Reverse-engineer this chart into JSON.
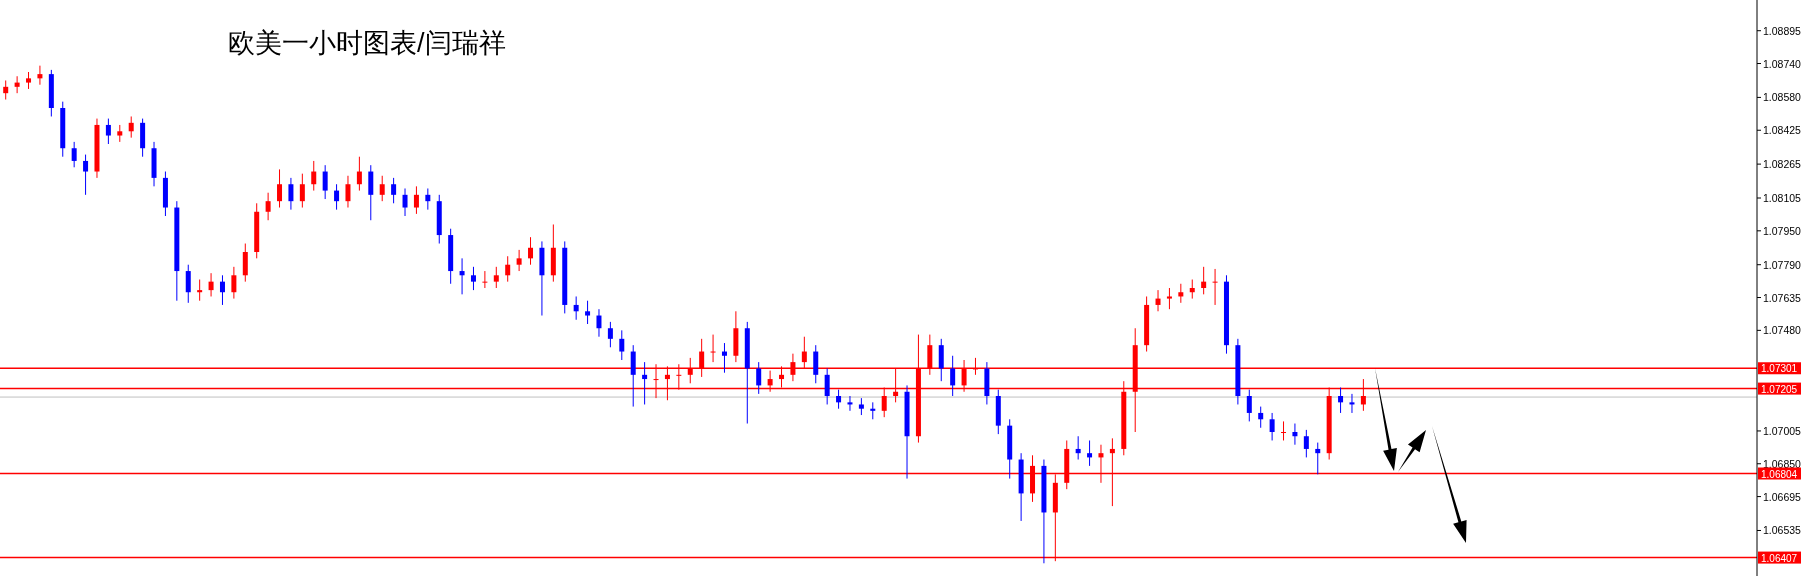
{
  "chart_data": {
    "type": "candlestick",
    "title": "欧美一小时图表/闫瑞祥",
    "categories": [
      null,
      null,
      null,
      null,
      null,
      null,
      null,
      null,
      null,
      null,
      null,
      null,
      null,
      null,
      null,
      null,
      null,
      null,
      null,
      null,
      null,
      null,
      null,
      null,
      null,
      null,
      null,
      null,
      null,
      null,
      null,
      null,
      null,
      null,
      null,
      null,
      null,
      null,
      null,
      null,
      null,
      null,
      null,
      null,
      null,
      null,
      null,
      null,
      null,
      null,
      null,
      null,
      null,
      null,
      null,
      null,
      null,
      null,
      null,
      null,
      null,
      null,
      null,
      null,
      null,
      null,
      null,
      null,
      null,
      null,
      null,
      null,
      null,
      null,
      null,
      null,
      null,
      null,
      null,
      null,
      null,
      null,
      null,
      null,
      null,
      null,
      null,
      null,
      null,
      null,
      null,
      null,
      null,
      null,
      null,
      null,
      null,
      null,
      null,
      null,
      null,
      null,
      null,
      null,
      null,
      null,
      null,
      null,
      null,
      null,
      null,
      null,
      null,
      null,
      null,
      null,
      null,
      null,
      null,
      null,
      null,
      null,
      null,
      null,
      null,
      null,
      null,
      null,
      null,
      null,
      null,
      null,
      null,
      null,
      null,
      null,
      null,
      null,
      null,
      null,
      null,
      null,
      null,
      null,
      null,
      null,
      null,
      null,
      null,
      null,
      null,
      null,
      null,
      null
    ],
    "ohlc": [
      [
        1.086,
        1.0866,
        1.0857,
        1.0863
      ],
      [
        1.0863,
        1.0868,
        1.086,
        1.0865
      ],
      [
        1.0865,
        1.087,
        1.0862,
        1.0867
      ],
      [
        1.0867,
        1.0873,
        1.0864,
        1.0869
      ],
      [
        1.0869,
        1.0871,
        1.0849,
        1.0853
      ],
      [
        1.0853,
        1.0856,
        1.083,
        1.0834
      ],
      [
        1.0834,
        1.0837,
        1.0825,
        1.0828
      ],
      [
        1.0828,
        1.0831,
        1.0812,
        1.0823
      ],
      [
        1.0823,
        1.0848,
        1.082,
        1.0845
      ],
      [
        1.0845,
        1.0848,
        1.0836,
        1.084
      ],
      [
        1.084,
        1.0845,
        1.0837,
        1.0842
      ],
      [
        1.0842,
        1.0849,
        1.0839,
        1.0846
      ],
      [
        1.0846,
        1.0848,
        1.083,
        1.0834
      ],
      [
        1.0834,
        1.0837,
        1.0816,
        1.082
      ],
      [
        1.082,
        1.0823,
        1.0802,
        1.0806
      ],
      [
        1.0806,
        1.0809,
        1.0762,
        1.0776
      ],
      [
        1.0776,
        1.0779,
        1.0761,
        1.0766
      ],
      [
        1.0766,
        1.0772,
        1.0762,
        1.0767
      ],
      [
        1.0767,
        1.0775,
        1.0764,
        1.0771
      ],
      [
        1.0771,
        1.0774,
        1.076,
        1.0766
      ],
      [
        1.0766,
        1.0778,
        1.0763,
        1.0774
      ],
      [
        1.0774,
        1.0789,
        1.0771,
        1.0785
      ],
      [
        1.0785,
        1.0808,
        1.0782,
        1.0804
      ],
      [
        1.0804,
        1.0813,
        1.08,
        1.0809
      ],
      [
        1.0809,
        1.0824,
        1.0806,
        1.0817
      ],
      [
        1.0817,
        1.082,
        1.0805,
        1.0809
      ],
      [
        1.0809,
        1.0822,
        1.0806,
        1.0817
      ],
      [
        1.0817,
        1.0828,
        1.0814,
        1.0823
      ],
      [
        1.0823,
        1.0826,
        1.081,
        1.0814
      ],
      [
        1.0814,
        1.0817,
        1.0805,
        1.0809
      ],
      [
        1.0809,
        1.0821,
        1.0806,
        1.0817
      ],
      [
        1.0817,
        1.083,
        1.0814,
        1.0823
      ],
      [
        1.0823,
        1.0826,
        1.08,
        1.0812
      ],
      [
        1.0812,
        1.0821,
        1.0809,
        1.0817
      ],
      [
        1.0817,
        1.082,
        1.0808,
        1.0812
      ],
      [
        1.0812,
        1.0815,
        1.0802,
        1.0806
      ],
      [
        1.0806,
        1.0816,
        1.0803,
        1.0812
      ],
      [
        1.0812,
        1.0815,
        1.0805,
        1.0809
      ],
      [
        1.0809,
        1.0812,
        1.0789,
        1.0793
      ],
      [
        1.0793,
        1.0796,
        1.077,
        1.0776
      ],
      [
        1.0776,
        1.0782,
        1.0765,
        1.0774
      ],
      [
        1.0774,
        1.0778,
        1.0767,
        1.0771
      ],
      [
        1.0771,
        1.0776,
        1.0768,
        1.0771
      ],
      [
        1.0771,
        1.0778,
        1.0768,
        1.0774
      ],
      [
        1.0774,
        1.0783,
        1.0771,
        1.0779
      ],
      [
        1.0779,
        1.0786,
        1.0776,
        1.0782
      ],
      [
        1.0782,
        1.0792,
        1.0779,
        1.0787
      ],
      [
        1.0787,
        1.079,
        1.0755,
        1.0774
      ],
      [
        1.0774,
        1.0798,
        1.0771,
        1.0787
      ],
      [
        1.0787,
        1.079,
        1.0756,
        1.076
      ],
      [
        1.076,
        1.0764,
        1.0753,
        1.0757
      ],
      [
        1.0757,
        1.0762,
        1.0751,
        1.0755
      ],
      [
        1.0755,
        1.0758,
        1.0745,
        1.0749
      ],
      [
        1.0749,
        1.0752,
        1.074,
        1.0744
      ],
      [
        1.0744,
        1.0748,
        1.0734,
        1.0738
      ],
      [
        1.0738,
        1.0741,
        1.0712,
        1.0727
      ],
      [
        1.0727,
        1.0733,
        1.0713,
        1.0725
      ],
      [
        1.0725,
        1.0732,
        1.0716,
        1.0725
      ],
      [
        1.0725,
        1.0731,
        1.0715,
        1.0727
      ],
      [
        1.0727,
        1.0732,
        1.072,
        1.0727
      ],
      [
        1.0727,
        1.0735,
        1.0723,
        1.073
      ],
      [
        1.073,
        1.0744,
        1.0726,
        1.0738
      ],
      [
        1.0738,
        1.0746,
        1.0733,
        1.0738
      ],
      [
        1.0738,
        1.0742,
        1.0728,
        1.0736
      ],
      [
        1.0736,
        1.0757,
        1.0733,
        1.0749
      ],
      [
        1.0749,
        1.0752,
        1.0704,
        1.073
      ],
      [
        1.073,
        1.0733,
        1.0718,
        1.0722
      ],
      [
        1.0722,
        1.0729,
        1.0719,
        1.0725
      ],
      [
        1.0725,
        1.0731,
        1.0721,
        1.0727
      ],
      [
        1.0727,
        1.0737,
        1.0724,
        1.0733
      ],
      [
        1.0733,
        1.0745,
        1.073,
        1.0738
      ],
      [
        1.0738,
        1.0741,
        1.0723,
        1.0727
      ],
      [
        1.0727,
        1.073,
        1.0713,
        1.0717
      ],
      [
        1.0717,
        1.072,
        1.0711,
        1.0714
      ],
      [
        1.0714,
        1.0717,
        1.071,
        1.0713
      ],
      [
        1.0713,
        1.0716,
        1.0708,
        1.0711
      ],
      [
        1.0711,
        1.0714,
        1.0706,
        1.071
      ],
      [
        1.071,
        1.0721,
        1.0707,
        1.0717
      ],
      [
        1.0717,
        1.073,
        1.0714,
        1.0719
      ],
      [
        1.0719,
        1.0722,
        1.0678,
        1.0698
      ],
      [
        1.0698,
        1.0746,
        1.0695,
        1.073
      ],
      [
        1.073,
        1.0746,
        1.0727,
        1.0741
      ],
      [
        1.0741,
        1.0744,
        1.0724,
        1.073
      ],
      [
        1.073,
        1.0736,
        1.0717,
        1.0722
      ],
      [
        1.0722,
        1.0734,
        1.0719,
        1.073
      ],
      [
        1.073,
        1.0735,
        1.0727,
        1.073
      ],
      [
        1.073,
        1.0733,
        1.0713,
        1.0717
      ],
      [
        1.0717,
        1.072,
        1.0699,
        1.0703
      ],
      [
        1.0703,
        1.0706,
        1.0678,
        1.0687
      ],
      [
        1.0687,
        1.069,
        1.0658,
        1.0671
      ],
      [
        1.0671,
        1.0689,
        1.0667,
        1.0684
      ],
      [
        1.0684,
        1.0687,
        1.0638,
        1.0662
      ],
      [
        1.0662,
        1.068,
        1.0639,
        1.0676
      ],
      [
        1.0676,
        1.0696,
        1.0673,
        1.0692
      ],
      [
        1.0692,
        1.0698,
        1.0687,
        1.069
      ],
      [
        1.069,
        1.0696,
        1.0684,
        1.0688
      ],
      [
        1.0688,
        1.0694,
        1.0676,
        1.069
      ],
      [
        1.069,
        1.0697,
        1.0665,
        1.0692
      ],
      [
        1.0692,
        1.0724,
        1.0689,
        1.0719
      ],
      [
        1.0719,
        1.0749,
        1.07,
        1.0741
      ],
      [
        1.0741,
        1.0764,
        1.0738,
        1.076
      ],
      [
        1.076,
        1.0767,
        1.0757,
        1.0763
      ],
      [
        1.0763,
        1.0768,
        1.0758,
        1.0764
      ],
      [
        1.0764,
        1.077,
        1.0761,
        1.0766
      ],
      [
        1.0766,
        1.0772,
        1.0763,
        1.0768
      ],
      [
        1.0768,
        1.0778,
        1.0765,
        1.0771
      ],
      [
        1.0771,
        1.0777,
        1.076,
        1.0771
      ],
      [
        1.0771,
        1.0774,
        1.0737,
        1.0741
      ],
      [
        1.0741,
        1.0744,
        1.0713,
        1.0717
      ],
      [
        1.0717,
        1.072,
        1.0705,
        1.0709
      ],
      [
        1.0709,
        1.0712,
        1.0702,
        1.0706
      ],
      [
        1.0706,
        1.0709,
        1.0696,
        1.07
      ],
      [
        1.07,
        1.0705,
        1.0696,
        1.07
      ],
      [
        1.07,
        1.0704,
        1.0694,
        1.0698
      ],
      [
        1.0698,
        1.0701,
        1.0688,
        1.0692
      ],
      [
        1.0692,
        1.0695,
        1.068,
        1.069
      ],
      [
        1.069,
        1.0721,
        1.0687,
        1.0717
      ],
      [
        1.0717,
        1.0721,
        1.0709,
        1.0714
      ],
      [
        1.0714,
        1.0718,
        1.0709,
        1.0713
      ],
      [
        1.0713,
        1.0725,
        1.071,
        1.0717
      ],
      null,
      null,
      null,
      null,
      null,
      null,
      null,
      null,
      null,
      null,
      null,
      null,
      null,
      null,
      null,
      null,
      null,
      null,
      null,
      null,
      null,
      null,
      null,
      null,
      null,
      null,
      null,
      null,
      null,
      null,
      null,
      null,
      null,
      null
    ],
    "colors": [
      "#ff0000",
      "#ff0000",
      "#ff0000",
      "#ff0000",
      "#0000ff",
      "#0000ff",
      "#0000ff",
      "#0000ff",
      "#ff0000",
      "#0000ff",
      "#ff0000",
      "#ff0000",
      "#0000ff",
      "#0000ff",
      "#0000ff",
      "#0000ff",
      "#0000ff",
      "#ff0000",
      "#ff0000",
      "#0000ff",
      "#ff0000",
      "#ff0000",
      "#ff0000",
      "#ff0000",
      "#ff0000",
      "#0000ff",
      "#ff0000",
      "#ff0000",
      "#0000ff",
      "#0000ff",
      "#ff0000",
      "#ff0000",
      "#0000ff",
      "#ff0000",
      "#0000ff",
      "#0000ff",
      "#ff0000",
      "#0000ff",
      "#0000ff",
      "#0000ff",
      "#0000ff",
      "#0000ff",
      "#ff0000",
      "#ff0000",
      "#ff0000",
      "#ff0000",
      "#ff0000",
      "#0000ff",
      "#ff0000",
      "#0000ff",
      "#0000ff",
      "#0000ff",
      "#0000ff",
      "#0000ff",
      "#0000ff",
      "#0000ff",
      "#0000ff",
      "#ff0000",
      "#ff0000",
      "#ff0000",
      "#ff0000",
      "#ff0000",
      "#ff0000",
      "#0000ff",
      "#ff0000",
      "#0000ff",
      "#0000ff",
      "#ff0000",
      "#ff0000",
      "#ff0000",
      "#ff0000",
      "#0000ff",
      "#0000ff",
      "#0000ff",
      "#0000ff",
      "#0000ff",
      "#0000ff",
      "#ff0000",
      "#ff0000",
      "#0000ff",
      "#ff0000",
      "#ff0000",
      "#0000ff",
      "#0000ff",
      "#ff0000",
      "#ff0000",
      "#0000ff",
      "#0000ff",
      "#0000ff",
      "#0000ff",
      "#ff0000",
      "#0000ff",
      "#ff0000",
      "#ff0000",
      "#0000ff",
      "#0000ff",
      "#ff0000",
      "#ff0000",
      "#ff0000",
      "#ff0000",
      "#ff0000",
      "#ff0000",
      "#ff0000",
      "#ff0000",
      "#ff0000",
      "#ff0000",
      "#ff0000",
      "#0000ff",
      "#0000ff",
      "#0000ff",
      "#0000ff",
      "#0000ff",
      "#ff0000",
      "#0000ff",
      "#0000ff",
      "#0000ff",
      "#ff0000",
      "#0000ff",
      "#0000ff",
      "#ff0000",
      null,
      null,
      null,
      null,
      null,
      null,
      null,
      null,
      null,
      null,
      null,
      null,
      null,
      null,
      null,
      null,
      null,
      null,
      null,
      null,
      null,
      null,
      null,
      null,
      null,
      null,
      null,
      null,
      null,
      null,
      null,
      null,
      null,
      null
    ],
    "ylim": [
      1.0632,
      1.0904
    ],
    "yticks": [
      {
        "value": 1.08895,
        "label": "1.08895"
      },
      {
        "value": 1.0874,
        "label": "1.08740"
      },
      {
        "value": 1.0858,
        "label": "1.08580"
      },
      {
        "value": 1.08425,
        "label": "1.08425"
      },
      {
        "value": 1.08265,
        "label": "1.08265"
      },
      {
        "value": 1.08105,
        "label": "1.08105"
      },
      {
        "value": 1.0795,
        "label": "1.07950"
      },
      {
        "value": 1.0779,
        "label": "1.07790"
      },
      {
        "value": 1.07635,
        "label": "1.07635"
      },
      {
        "value": 1.0748,
        "label": "1.07480"
      },
      {
        "value": 1.07005,
        "label": "1.07005"
      },
      {
        "value": 1.0685,
        "label": "1.06850"
      },
      {
        "value": 1.06695,
        "label": "1.06695"
      },
      {
        "value": 1.06535,
        "label": "1.06535"
      }
    ],
    "tick_labels": "y",
    "grid": false,
    "ref_lines": [
      {
        "axis": "y",
        "value": 1.07301,
        "label": "1.07301",
        "color": "#ff0000"
      },
      {
        "axis": "y",
        "value": 1.07205,
        "label": "1.07205",
        "color": "#ff0000"
      },
      {
        "axis": "y",
        "value": 1.06804,
        "label": "1.06804",
        "color": "#ff0000"
      },
      {
        "axis": "y",
        "value": 1.06407,
        "label": "1.06407",
        "color": "#ff0000"
      },
      {
        "axis": "y",
        "value": 1.07165,
        "color": "#c0c0c0"
      }
    ]
  }
}
